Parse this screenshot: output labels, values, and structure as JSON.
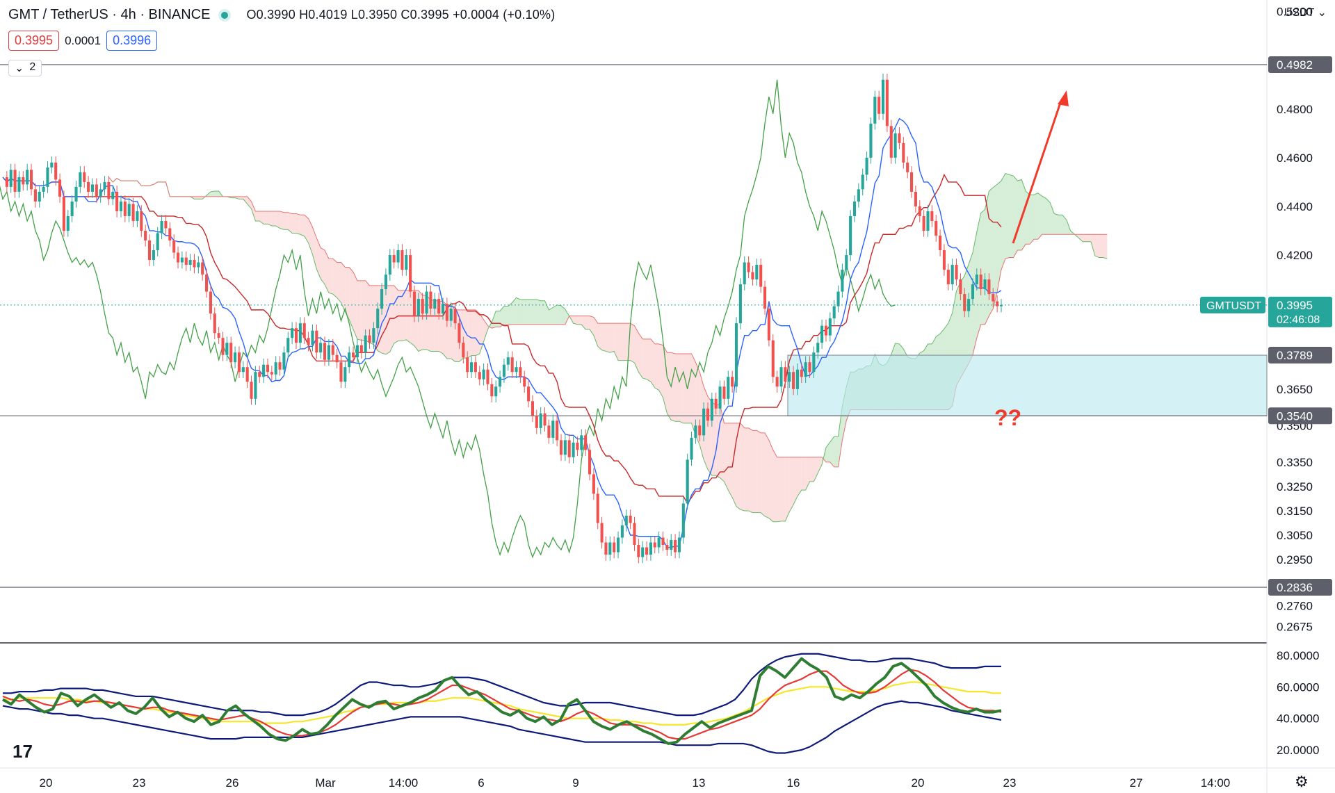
{
  "header": {
    "symbol_title": "GMT / TetherUS · 4h · BINANCE",
    "ohlc": "O0.3990  H0.4019  L0.3950  C0.3995  +0.0004 (+0.10%)",
    "sell_price": "0.3995",
    "spread": "0.0001",
    "buy_price": "0.3996",
    "indicator_count": "2",
    "currency": "USDT"
  },
  "colors": {
    "up": "#26a69a",
    "down": "#ef5350",
    "tenkan": "#2962ff",
    "kijun": "#c62828",
    "chikou": "#43a047",
    "cloud_bull": "#a5d6a7",
    "cloud_bear": "#f8bbb7",
    "zone": "#bde9f0",
    "arrow": "#f23a2a",
    "rsi": "#2e7d32",
    "rsi_signal": "#e53935",
    "bb": "#0d1a7a",
    "bb_mid": "#f5e62a"
  },
  "chart_data": [
    {
      "type": "candlestick",
      "title": "GMT / TetherUS · 4h · BINANCE",
      "indicators": [
        "Ichimoku Cloud"
      ],
      "ylim": [
        0.2675,
        0.52
      ],
      "price_scale_ticks": [
        "0.5200",
        "0.4800",
        "0.4600",
        "0.4400",
        "0.4200",
        "0.3650",
        "0.3500",
        "0.3350",
        "0.3250",
        "0.3150",
        "0.3050",
        "0.2950",
        "0.2760",
        "0.2675"
      ],
      "x_tick_labels": [
        "20",
        "23",
        "26",
        "Mar",
        "14:00",
        "6",
        "9",
        "13",
        "16",
        "20",
        "23",
        "27",
        "14:00"
      ],
      "horizontal_levels": [
        {
          "value": 0.4982,
          "label": "0.4982"
        },
        {
          "value": 0.354,
          "label": "0.3540"
        },
        {
          "value": 0.2836,
          "label": "0.2836"
        }
      ],
      "zone": {
        "top": 0.3789,
        "bottom": 0.354,
        "labels": [
          "0.3789",
          "0.3540"
        ]
      },
      "last_price": {
        "value": 0.3995,
        "label": "0.3995",
        "symbol": "GMTUSDT",
        "countdown": "02:46:08"
      },
      "annotation_text": "??",
      "closes": [
        0.452,
        0.448,
        0.455,
        0.446,
        0.452,
        0.449,
        0.455,
        0.447,
        0.442,
        0.446,
        0.448,
        0.456,
        0.458,
        0.451,
        0.444,
        0.43,
        0.436,
        0.442,
        0.448,
        0.454,
        0.45,
        0.446,
        0.449,
        0.444,
        0.447,
        0.45,
        0.443,
        0.446,
        0.438,
        0.442,
        0.436,
        0.441,
        0.434,
        0.438,
        0.43,
        0.426,
        0.418,
        0.422,
        0.429,
        0.434,
        0.431,
        0.426,
        0.421,
        0.417,
        0.419,
        0.416,
        0.418,
        0.415,
        0.417,
        0.412,
        0.405,
        0.396,
        0.388,
        0.386,
        0.379,
        0.384,
        0.376,
        0.38,
        0.372,
        0.374,
        0.368,
        0.361,
        0.372,
        0.37,
        0.375,
        0.372,
        0.371,
        0.376,
        0.373,
        0.38,
        0.386,
        0.39,
        0.384,
        0.392,
        0.386,
        0.383,
        0.389,
        0.38,
        0.384,
        0.377,
        0.383,
        0.379,
        0.376,
        0.368,
        0.374,
        0.38,
        0.378,
        0.383,
        0.38,
        0.387,
        0.384,
        0.39,
        0.398,
        0.406,
        0.412,
        0.42,
        0.417,
        0.422,
        0.414,
        0.42,
        0.405,
        0.395,
        0.402,
        0.396,
        0.405,
        0.398,
        0.402,
        0.396,
        0.4,
        0.393,
        0.398,
        0.392,
        0.384,
        0.378,
        0.372,
        0.376,
        0.372,
        0.369,
        0.373,
        0.367,
        0.362,
        0.366,
        0.37,
        0.375,
        0.378,
        0.372,
        0.374,
        0.37,
        0.366,
        0.36,
        0.354,
        0.349,
        0.355,
        0.35,
        0.345,
        0.352,
        0.344,
        0.338,
        0.344,
        0.337,
        0.343,
        0.34,
        0.346,
        0.34,
        0.33,
        0.322,
        0.31,
        0.302,
        0.297,
        0.302,
        0.298,
        0.304,
        0.309,
        0.313,
        0.31,
        0.301,
        0.296,
        0.3,
        0.297,
        0.302,
        0.3,
        0.304,
        0.301,
        0.299,
        0.303,
        0.298,
        0.304,
        0.318,
        0.336,
        0.345,
        0.35,
        0.346,
        0.357,
        0.352,
        0.361,
        0.357,
        0.366,
        0.361,
        0.37,
        0.366,
        0.392,
        0.408,
        0.417,
        0.413,
        0.41,
        0.416,
        0.407,
        0.398,
        0.385,
        0.37,
        0.366,
        0.374,
        0.368,
        0.372,
        0.365,
        0.373,
        0.37,
        0.376,
        0.372,
        0.38,
        0.384,
        0.391,
        0.387,
        0.394,
        0.399,
        0.405,
        0.414,
        0.42,
        0.436,
        0.442,
        0.447,
        0.453,
        0.46,
        0.474,
        0.485,
        0.478,
        0.492,
        0.473,
        0.46,
        0.47,
        0.466,
        0.458,
        0.454,
        0.446,
        0.44,
        0.436,
        0.43,
        0.438,
        0.434,
        0.428,
        0.422,
        0.414,
        0.408,
        0.416,
        0.41,
        0.404,
        0.397,
        0.402,
        0.408,
        0.412,
        0.406,
        0.41,
        0.404,
        0.401,
        0.399,
        0.3995
      ]
    },
    {
      "type": "line",
      "title": "RSI with Bollinger Bands",
      "ylim": [
        10,
        85
      ],
      "y_ticks": [
        "80.0000",
        "60.0000",
        "40.0000",
        "20.0000"
      ],
      "series": [
        {
          "name": "RSI",
          "values": [
            52,
            49,
            55,
            51,
            47,
            44,
            46,
            56,
            54,
            48,
            52,
            55,
            51,
            47,
            50,
            45,
            43,
            47,
            53,
            46,
            41,
            44,
            40,
            38,
            42,
            36,
            38,
            45,
            48,
            43,
            39,
            35,
            30,
            27,
            26,
            29,
            33,
            30,
            31,
            36,
            42,
            47,
            52,
            49,
            47,
            50,
            51,
            46,
            48,
            50,
            53,
            55,
            58,
            64,
            66,
            60,
            55,
            57,
            52,
            48,
            44,
            42,
            45,
            40,
            38,
            41,
            36,
            39,
            49,
            52,
            45,
            38,
            35,
            33,
            36,
            38,
            35,
            32,
            30,
            27,
            24,
            25,
            30,
            34,
            38,
            34,
            37,
            39,
            41,
            43,
            45,
            67,
            73,
            70,
            66,
            72,
            78,
            74,
            71,
            66,
            54,
            52,
            55,
            53,
            57,
            62,
            66,
            73,
            75,
            71,
            66,
            61,
            54,
            50,
            47,
            45,
            44,
            46,
            44,
            44,
            45
          ]
        },
        {
          "name": "RSI MA",
          "values": [
            54,
            52,
            51,
            52,
            51,
            49,
            48,
            49,
            51,
            51,
            50,
            51,
            51,
            50,
            49,
            48,
            47,
            46,
            47,
            47,
            45,
            44,
            43,
            42,
            41,
            40,
            39,
            40,
            41,
            42,
            40,
            38,
            35,
            32,
            30,
            29,
            29,
            30,
            31,
            33,
            36,
            40,
            44,
            47,
            48,
            49,
            50,
            49,
            48,
            49,
            50,
            52,
            55,
            58,
            61,
            61,
            59,
            57,
            55,
            52,
            49,
            46,
            45,
            43,
            41,
            40,
            39,
            38,
            40,
            43,
            45,
            43,
            40,
            37,
            36,
            36,
            36,
            35,
            33,
            31,
            28,
            27,
            27,
            29,
            31,
            33,
            34,
            36,
            38,
            40,
            42,
            46,
            52,
            57,
            61,
            63,
            65,
            68,
            70,
            70,
            66,
            61,
            58,
            56,
            56,
            57,
            60,
            64,
            68,
            71,
            70,
            67,
            63,
            58,
            54,
            50,
            47,
            46,
            45,
            45,
            44
          ]
        },
        {
          "name": "BB Upper",
          "values": [
            56,
            56,
            57,
            57,
            57,
            58,
            58,
            59,
            59,
            59,
            59,
            58,
            58,
            57,
            56,
            55,
            54,
            54,
            54,
            53,
            52,
            51,
            50,
            49,
            48,
            47,
            46,
            45,
            45,
            45,
            45,
            44,
            44,
            43,
            42,
            42,
            42,
            43,
            44,
            46,
            49,
            53,
            57,
            61,
            63,
            63,
            62,
            61,
            61,
            60,
            60,
            61,
            62,
            64,
            66,
            66,
            66,
            65,
            64,
            62,
            60,
            58,
            56,
            54,
            52,
            50,
            49,
            48,
            48,
            49,
            50,
            50,
            50,
            50,
            49,
            48,
            47,
            46,
            45,
            44,
            43,
            42,
            42,
            42,
            43,
            45,
            47,
            49,
            52,
            58,
            65,
            70,
            74,
            77,
            79,
            80,
            81,
            81,
            81,
            80,
            79,
            78,
            77,
            77,
            76,
            76,
            77,
            78,
            78,
            78,
            77,
            76,
            75,
            73,
            72,
            72,
            72,
            72,
            73,
            73,
            73
          ]
        },
        {
          "name": "BB Middle",
          "values": [
            52,
            52,
            53,
            53,
            53,
            53,
            53,
            53,
            52,
            52,
            51,
            51,
            50,
            50,
            49,
            48,
            47,
            46,
            46,
            45,
            44,
            43,
            42,
            41,
            40,
            39,
            38,
            38,
            38,
            38,
            38,
            37,
            37,
            37,
            37,
            38,
            38,
            39,
            40,
            41,
            42,
            44,
            45,
            47,
            48,
            49,
            49,
            50,
            50,
            50,
            50,
            51,
            51,
            52,
            53,
            53,
            53,
            52,
            51,
            50,
            49,
            48,
            46,
            45,
            44,
            43,
            42,
            41,
            40,
            40,
            40,
            40,
            40,
            39,
            39,
            38,
            38,
            37,
            37,
            36,
            36,
            36,
            36,
            37,
            37,
            38,
            39,
            40,
            42,
            44,
            47,
            50,
            53,
            55,
            57,
            58,
            59,
            60,
            60,
            60,
            59,
            58,
            57,
            57,
            57,
            58,
            59,
            61,
            62,
            63,
            63,
            62,
            61,
            60,
            59,
            58,
            57,
            57,
            57,
            56,
            56
          ]
        },
        {
          "name": "BB Lower",
          "values": [
            48,
            47,
            46,
            46,
            45,
            44,
            43,
            43,
            42,
            42,
            41,
            40,
            40,
            39,
            38,
            37,
            36,
            35,
            34,
            33,
            32,
            31,
            30,
            29,
            28,
            27,
            27,
            27,
            27,
            28,
            28,
            28,
            28,
            28,
            28,
            28,
            28,
            29,
            30,
            31,
            32,
            33,
            34,
            35,
            36,
            37,
            38,
            39,
            40,
            41,
            41,
            41,
            41,
            41,
            41,
            41,
            40,
            39,
            38,
            37,
            36,
            35,
            33,
            32,
            31,
            30,
            29,
            28,
            27,
            26,
            25,
            25,
            25,
            25,
            25,
            25,
            25,
            25,
            25,
            25,
            24,
            23,
            23,
            23,
            23,
            23,
            24,
            24,
            24,
            24,
            23,
            21,
            19,
            18,
            18,
            19,
            20,
            22,
            25,
            28,
            32,
            35,
            38,
            41,
            44,
            47,
            49,
            50,
            51,
            50,
            50,
            49,
            48,
            47,
            45,
            44,
            43,
            42,
            41,
            40,
            39
          ]
        }
      ]
    }
  ]
}
